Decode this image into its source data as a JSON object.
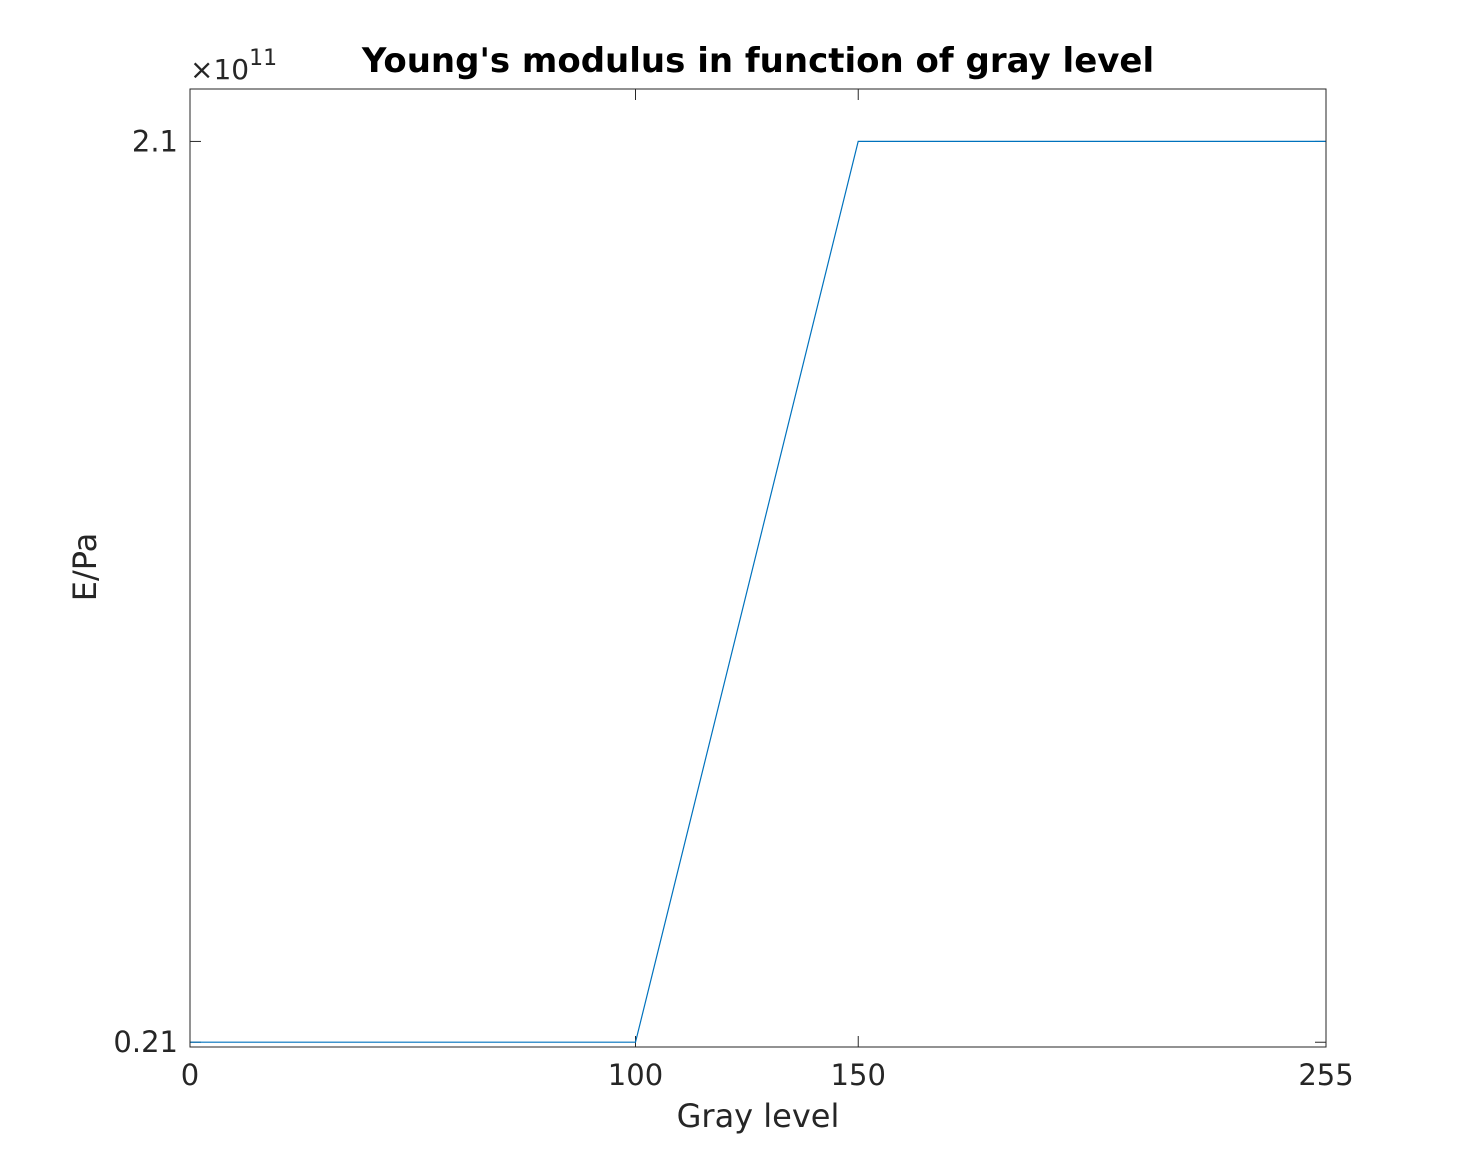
{
  "chart_data": {
    "type": "line",
    "title": "Young's modulus in function of gray level",
    "xlabel": "Gray level",
    "ylabel": "E/Pa",
    "y_exponent_prefix": "×10",
    "y_exponent_power": "11",
    "xlim": [
      0,
      255
    ],
    "ylim": [
      0.2,
      2.21
    ],
    "x_ticks": [
      0,
      100,
      150,
      255
    ],
    "x_tick_labels": [
      "0",
      "100",
      "150",
      "255"
    ],
    "y_ticks": [
      0.21,
      2.1
    ],
    "y_tick_labels": [
      "0.21",
      "2.1"
    ],
    "grid": false,
    "series": [
      {
        "color": "#0072bd",
        "x": [
          0,
          100,
          150,
          255
        ],
        "y": [
          0.21,
          0.21,
          2.1,
          2.1
        ]
      }
    ]
  }
}
